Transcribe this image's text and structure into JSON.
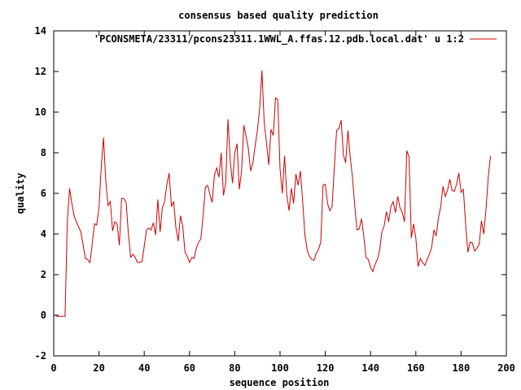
{
  "chart_data": {
    "type": "line",
    "title": "consensus based quality prediction",
    "xlabel": "sequence position",
    "ylabel": "quality",
    "xlim": [
      0,
      200
    ],
    "ylim": [
      -2,
      14
    ],
    "xticks": [
      "0",
      "20",
      "40",
      "60",
      "80",
      "100",
      "120",
      "140",
      "160",
      "180",
      "200"
    ],
    "yticks": [
      "-2",
      "0",
      "2",
      "4",
      "6",
      "8",
      "10",
      "12",
      "14"
    ],
    "grid": false,
    "legend_position": "top-right",
    "series": [
      {
        "name": "'PCONSMETA/23311/pcons23311.1WWL_A.ffas.12.pdb.local.dat' u 1:2",
        "color": "#cc0000",
        "x": [
          1,
          2,
          3,
          4,
          5,
          6,
          7,
          8,
          9,
          10,
          11,
          12,
          13,
          14,
          15,
          16,
          17,
          18,
          19,
          20,
          21,
          22,
          23,
          24,
          25,
          26,
          27,
          28,
          29,
          30,
          31,
          32,
          33,
          34,
          35,
          36,
          37,
          38,
          39,
          40,
          41,
          42,
          43,
          44,
          45,
          46,
          47,
          48,
          49,
          50,
          51,
          52,
          53,
          54,
          55,
          56,
          57,
          58,
          59,
          60,
          61,
          62,
          63,
          64,
          65,
          66,
          67,
          68,
          69,
          70,
          71,
          72,
          73,
          74,
          75,
          76,
          77,
          78,
          79,
          80,
          81,
          82,
          83,
          84,
          85,
          86,
          87,
          88,
          89,
          90,
          91,
          92,
          93,
          94,
          95,
          96,
          97,
          98,
          99,
          100,
          101,
          102,
          103,
          104,
          105,
          106,
          107,
          108,
          109,
          110,
          111,
          112,
          113,
          114,
          115,
          116,
          117,
          118,
          119,
          120,
          121,
          122,
          123,
          124,
          125,
          126,
          127,
          128,
          129,
          130,
          131,
          132,
          133,
          134,
          135,
          136,
          137,
          138,
          139,
          140,
          141,
          142,
          143,
          144,
          145,
          146,
          147,
          148,
          149,
          150,
          151,
          152,
          153,
          154,
          155,
          156,
          157,
          158,
          159,
          160,
          161,
          162,
          163,
          164,
          165,
          166,
          167,
          168,
          169,
          170,
          171,
          172,
          173,
          174,
          175,
          176,
          177,
          178,
          179,
          180,
          181,
          182,
          183,
          184,
          185,
          186,
          187,
          188,
          189,
          190,
          191,
          192,
          193
        ],
        "y": [
          -0.05,
          -0.05,
          -0.05,
          -0.05,
          -0.05,
          4.6,
          6.25,
          5.5,
          4.9,
          4.6,
          4.35,
          4.1,
          3.45,
          2.8,
          2.75,
          2.6,
          3.5,
          4.5,
          4.45,
          5.3,
          7.3,
          8.75,
          6.6,
          5.4,
          5.6,
          4.15,
          4.6,
          4.5,
          3.45,
          5.75,
          5.75,
          5.55,
          4.0,
          2.85,
          3.0,
          2.85,
          2.6,
          2.6,
          2.65,
          3.4,
          4.2,
          4.3,
          4.2,
          4.55,
          3.95,
          5.7,
          4.1,
          5.3,
          5.6,
          6.45,
          7.0,
          5.35,
          5.6,
          4.3,
          3.65,
          4.9,
          4.4,
          3.1,
          2.9,
          2.6,
          2.85,
          2.8,
          3.3,
          3.6,
          3.75,
          4.9,
          6.3,
          6.4,
          5.95,
          5.55,
          6.9,
          7.25,
          6.8,
          8.0,
          5.9,
          6.5,
          9.65,
          7.6,
          6.5,
          8.0,
          8.45,
          6.2,
          7.1,
          9.35,
          8.8,
          8.2,
          7.1,
          7.5,
          8.35,
          9.1,
          10.2,
          12.05,
          9.5,
          8.5,
          7.4,
          9.15,
          8.85,
          10.7,
          10.6,
          7.2,
          6.0,
          7.85,
          5.9,
          5.15,
          6.25,
          5.5,
          6.95,
          6.4,
          7.1,
          5.6,
          3.95,
          3.2,
          2.9,
          2.75,
          2.7,
          3.05,
          3.25,
          3.6,
          6.4,
          6.45,
          5.5,
          5.15,
          5.35,
          7.3,
          9.1,
          9.2,
          9.6,
          7.9,
          7.5,
          9.1,
          7.8,
          6.8,
          5.4,
          4.2,
          4.25,
          4.75,
          3.9,
          2.85,
          2.75,
          2.35,
          2.15,
          2.5,
          2.75,
          3.2,
          4.1,
          4.4,
          5.1,
          4.6,
          5.35,
          5.6,
          5.05,
          5.85,
          5.3,
          5.05,
          4.6,
          8.1,
          7.8,
          3.8,
          4.5,
          3.8,
          2.4,
          2.8,
          2.6,
          2.45,
          2.75,
          3.0,
          3.35,
          4.2,
          3.9,
          4.8,
          5.35,
          6.35,
          5.85,
          6.15,
          6.7,
          6.15,
          6.1,
          6.45,
          7.0,
          6.05,
          6.2,
          4.5,
          3.1,
          3.6,
          3.55,
          3.15,
          3.3,
          3.5,
          4.65,
          4.0,
          5.2,
          6.8,
          7.85
        ]
      }
    ]
  }
}
